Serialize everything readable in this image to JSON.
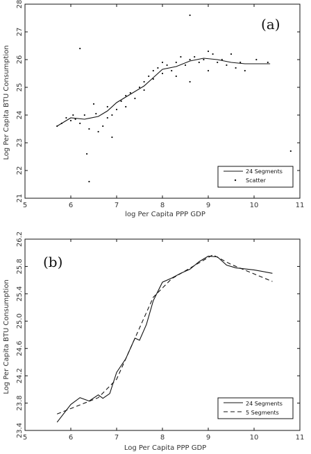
{
  "chart_data": [
    {
      "type": "scatter",
      "panel_label": "(a)",
      "xlabel": "log Per Capita PPP GDP",
      "ylabel": "Log Per Capita BTU Consumption",
      "xlim": [
        5,
        11
      ],
      "ylim": [
        21,
        28
      ],
      "xticks": [
        "5",
        "6",
        "7",
        "8",
        "9",
        "10",
        "11"
      ],
      "yticks": [
        "21",
        "22",
        "23",
        "24",
        "25",
        "26",
        "27",
        "28"
      ],
      "legend": {
        "placement": "bottom-right",
        "entries": [
          "24 Segments",
          "Scatter"
        ]
      },
      "grid": false,
      "series": [
        {
          "name": "24 Segments",
          "kind": "line",
          "points": [
            [
              5.7,
              23.6
            ],
            [
              6.0,
              23.9
            ],
            [
              6.3,
              23.85
            ],
            [
              6.6,
              23.95
            ],
            [
              6.8,
              24.15
            ],
            [
              7.0,
              24.45
            ],
            [
              7.3,
              24.75
            ],
            [
              7.6,
              25.05
            ],
            [
              7.8,
              25.35
            ],
            [
              8.0,
              25.65
            ],
            [
              8.3,
              25.75
            ],
            [
              8.6,
              25.95
            ],
            [
              8.9,
              26.05
            ],
            [
              9.2,
              26.0
            ],
            [
              9.5,
              25.9
            ],
            [
              9.8,
              25.85
            ],
            [
              10.1,
              25.85
            ],
            [
              10.35,
              25.85
            ]
          ]
        },
        {
          "name": "Scatter",
          "kind": "scatter",
          "points": [
            [
              5.7,
              23.6
            ],
            [
              5.8,
              23.7
            ],
            [
              5.9,
              23.9
            ],
            [
              6.0,
              23.8
            ],
            [
              6.05,
              24.0
            ],
            [
              6.1,
              23.85
            ],
            [
              6.2,
              23.7
            ],
            [
              6.3,
              24.0
            ],
            [
              6.35,
              22.6
            ],
            [
              6.4,
              23.5
            ],
            [
              6.4,
              21.6
            ],
            [
              6.5,
              24.4
            ],
            [
              6.55,
              24.05
            ],
            [
              6.6,
              23.4
            ],
            [
              6.7,
              23.6
            ],
            [
              6.8,
              23.9
            ],
            [
              6.8,
              24.3
            ],
            [
              6.9,
              23.2
            ],
            [
              6.9,
              24.0
            ],
            [
              7.0,
              24.2
            ],
            [
              7.1,
              24.5
            ],
            [
              7.2,
              24.7
            ],
            [
              7.2,
              24.3
            ],
            [
              7.3,
              24.8
            ],
            [
              7.4,
              24.6
            ],
            [
              7.5,
              25.0
            ],
            [
              7.6,
              25.2
            ],
            [
              7.6,
              24.9
            ],
            [
              7.7,
              25.4
            ],
            [
              7.8,
              25.3
            ],
            [
              7.8,
              25.6
            ],
            [
              7.9,
              25.7
            ],
            [
              8.0,
              25.5
            ],
            [
              8.0,
              25.9
            ],
            [
              8.1,
              25.8
            ],
            [
              8.2,
              25.6
            ],
            [
              8.3,
              25.9
            ],
            [
              8.3,
              25.4
            ],
            [
              8.4,
              26.1
            ],
            [
              8.5,
              25.8
            ],
            [
              8.6,
              26.0
            ],
            [
              8.6,
              25.2
            ],
            [
              8.6,
              27.6
            ],
            [
              8.7,
              26.1
            ],
            [
              8.8,
              25.9
            ],
            [
              8.9,
              26.0
            ],
            [
              9.0,
              26.3
            ],
            [
              9.0,
              25.6
            ],
            [
              9.1,
              26.2
            ],
            [
              9.2,
              25.9
            ],
            [
              9.3,
              26.0
            ],
            [
              9.4,
              25.8
            ],
            [
              9.5,
              26.2
            ],
            [
              9.6,
              25.7
            ],
            [
              9.7,
              25.9
            ],
            [
              9.8,
              25.6
            ],
            [
              10.05,
              26.0
            ],
            [
              10.3,
              25.9
            ],
            [
              10.8,
              22.7
            ],
            [
              6.2,
              26.4
            ]
          ]
        }
      ]
    },
    {
      "type": "line",
      "panel_label": "(b)",
      "xlabel": "Log Per Capita PPP GDP",
      "ylabel": "Log Per Capita BTU Consumption",
      "xlim": [
        5,
        11
      ],
      "ylim": [
        23.4,
        26.2
      ],
      "xticks": [
        "5",
        "6",
        "7",
        "8",
        "9",
        "10",
        "11"
      ],
      "yticks": [
        "23.4",
        "23.8",
        "24.2",
        "24.6",
        "25.0",
        "25.4",
        "25.8",
        "26.2"
      ],
      "legend": {
        "placement": "bottom-right",
        "entries": [
          "24 Segments",
          "5 Segments"
        ]
      },
      "grid": false,
      "series": [
        {
          "name": "24 Segments",
          "kind": "solid",
          "points": [
            [
              5.7,
              23.52
            ],
            [
              6.0,
              23.78
            ],
            [
              6.2,
              23.88
            ],
            [
              6.4,
              23.83
            ],
            [
              6.6,
              23.92
            ],
            [
              6.7,
              23.87
            ],
            [
              6.85,
              23.94
            ],
            [
              7.0,
              24.25
            ],
            [
              7.2,
              24.45
            ],
            [
              7.4,
              24.75
            ],
            [
              7.5,
              24.72
            ],
            [
              7.65,
              24.95
            ],
            [
              7.8,
              25.3
            ],
            [
              8.0,
              25.57
            ],
            [
              8.2,
              25.63
            ],
            [
              8.4,
              25.7
            ],
            [
              8.6,
              25.76
            ],
            [
              8.8,
              25.87
            ],
            [
              9.0,
              25.95
            ],
            [
              9.2,
              25.94
            ],
            [
              9.4,
              25.82
            ],
            [
              9.6,
              25.78
            ],
            [
              10.0,
              25.75
            ],
            [
              10.4,
              25.7
            ]
          ]
        },
        {
          "name": "5 Segments",
          "kind": "dashed",
          "points": [
            [
              5.7,
              23.64
            ],
            [
              6.6,
              23.88
            ],
            [
              7.0,
              24.15
            ],
            [
              7.8,
              25.35
            ],
            [
              8.2,
              25.62
            ],
            [
              9.1,
              25.97
            ],
            [
              9.5,
              25.83
            ],
            [
              10.4,
              25.58
            ]
          ]
        }
      ]
    }
  ]
}
